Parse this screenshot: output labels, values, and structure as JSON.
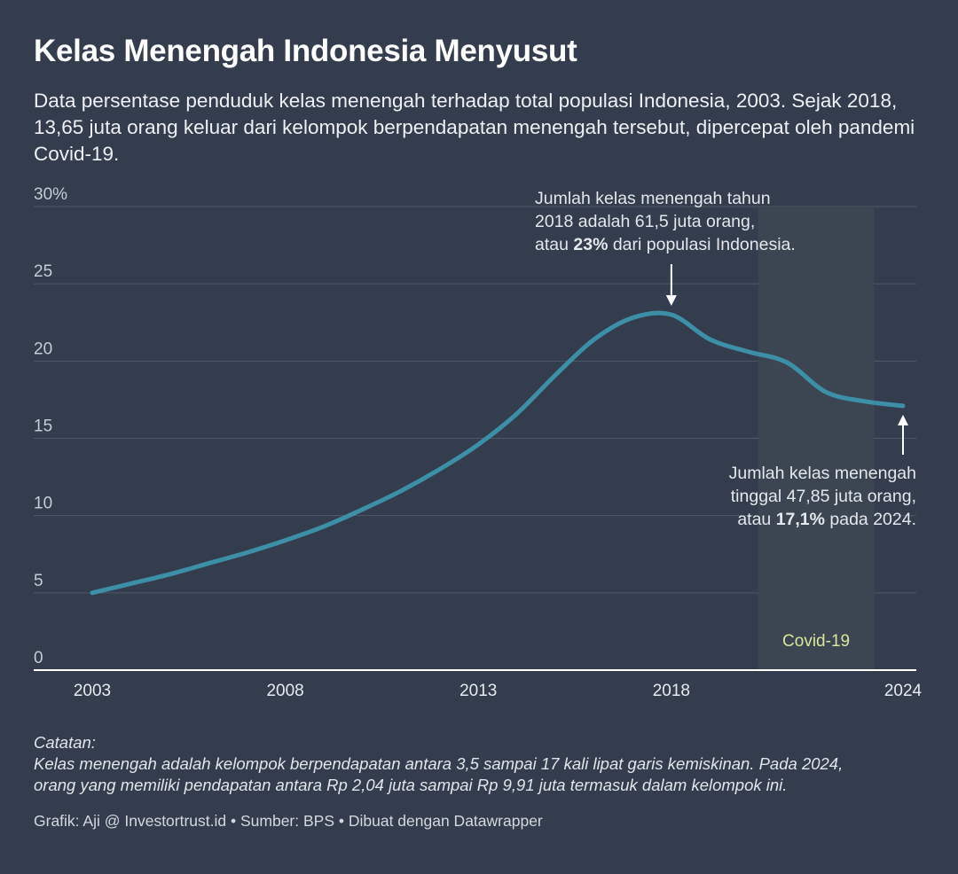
{
  "title": "Kelas Menengah Indonesia Menyusut",
  "subtitle": "Data persentase penduduk kelas menengah terhadap total populasi Indonesia, 2003. Sejak 2018, 13,65 juta orang keluar dari kelompok berpendapatan menengah tersebut, dipercepat oleh pandemi Covid-19.",
  "chart_data": {
    "type": "line",
    "ylim": [
      0,
      30
    ],
    "xlim": [
      2003,
      2024
    ],
    "y_ticks": [
      "0",
      "5",
      "10",
      "15",
      "20",
      "25",
      "30%"
    ],
    "x_ticks": [
      "2003",
      "2008",
      "2013",
      "2018",
      "2024"
    ],
    "x": [
      2003,
      2004,
      2005,
      2006,
      2007,
      2008,
      2009,
      2010,
      2011,
      2012,
      2013,
      2014,
      2015,
      2016,
      2017,
      2018,
      2019,
      2020,
      2021,
      2022,
      2023,
      2024
    ],
    "values": [
      5.0,
      5.6,
      6.2,
      6.9,
      7.6,
      8.4,
      9.3,
      10.4,
      11.6,
      13.0,
      14.6,
      16.6,
      19.1,
      21.4,
      22.8,
      23.0,
      21.4,
      20.6,
      19.9,
      18.0,
      17.4,
      17.1
    ],
    "line_color": "#3d8fa8",
    "shaded_region": {
      "from": 2020.25,
      "to": 2023.25,
      "label": "Covid-19",
      "label_color": "#d9e59a"
    },
    "annotations": [
      {
        "lines": [
          "Jumlah kelas menengah tahun",
          "2018 adalah 61,5 juta orang,"
        ],
        "line3_pre": "atau ",
        "line3_bold": "23%",
        "line3_post": " dari populasi Indonesia."
      },
      {
        "lines": [
          "Jumlah kelas menengah",
          "tinggal 47,85 juta orang,"
        ],
        "line3_pre": "atau ",
        "line3_bold": "17,1%",
        "line3_post": " pada 2024."
      }
    ]
  },
  "notes": {
    "heading": "Catatan:",
    "line1": "Kelas menengah adalah kelompok berpendapatan antara 3,5 sampai 17 kali lipat garis kemiskinan. Pada 2024,",
    "line2": "orang yang memiliki pendapatan antara Rp 2,04 juta sampai Rp 9,91 juta termasuk dalam kelompok ini."
  },
  "credit": "Grafik: Aji @ Investortrust.id • Sumber: BPS • Dibuat dengan Datawrapper"
}
